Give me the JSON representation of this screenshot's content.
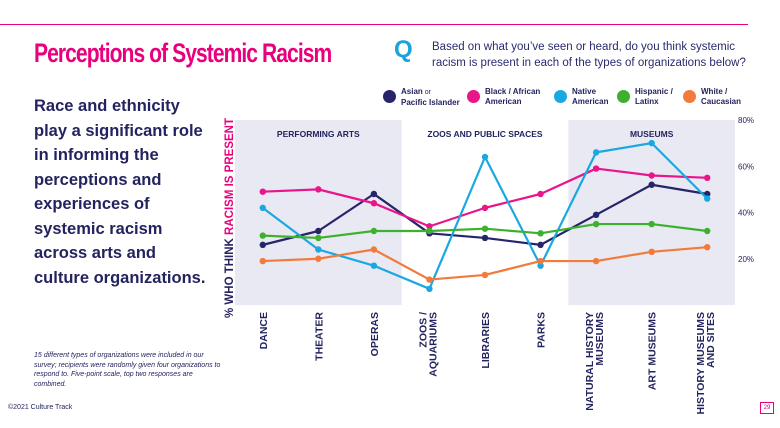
{
  "title": "Perceptions of Systemic Racism",
  "q_mark": "Q",
  "question": "Based on what you’ve seen or heard, do you think systemic racism is present in each of the types of organizations below?",
  "lede": "Race and ethnicity play a significant role in informing the perceptions and experiences of systemic racism across arts and culture organizations.",
  "footnote": "15 different types of organizations were included in our survey; recipients were randomly given four organizations to respond to. Five-point scale, top two responses are combined.",
  "copyright": "©2021 Culture Track",
  "page_number": "29",
  "colors": {
    "accent": "#e8007d",
    "q": "#1aa3dd",
    "band": "#e9e9f3",
    "text": "#23235f"
  },
  "chart_data": {
    "type": "line",
    "ylabel_prefix": "% WHO THINK ",
    "ylabel_highlight": "RACISM IS PRESENT",
    "ylim": [
      0,
      80
    ],
    "yticks": [
      "80%",
      "60%",
      "40%",
      "20%"
    ],
    "ytick_values": [
      80,
      60,
      40,
      20
    ],
    "groups": [
      {
        "label": "PERFORMING ARTS",
        "shaded": true,
        "start": 0,
        "end": 2
      },
      {
        "label": "ZOOS AND PUBLIC SPACES",
        "shaded": false,
        "start": 3,
        "end": 5
      },
      {
        "label": "MUSEUMS",
        "shaded": true,
        "start": 6,
        "end": 8
      }
    ],
    "categories": [
      "DANCE",
      "THEATER",
      "OPERAS",
      "ZOOS / AQUARIUMS",
      "LIBRARIES",
      "PARKS",
      "NATURAL HISTORY MUSEUMS",
      "ART MUSEUMS",
      "HISTORY MUSEUMS AND SITES"
    ],
    "series": [
      {
        "name": "Asian or Pacific Islander",
        "legend_main": "Asian",
        "legend_small": " or",
        "legend_line2": "Pacific Islander",
        "color": "#26246a",
        "values": [
          26,
          32,
          48,
          31,
          29,
          26,
          39,
          52,
          48
        ]
      },
      {
        "name": "Black / African American",
        "legend_main": "Black / African",
        "legend_small": "",
        "legend_line2": "American",
        "color": "#e8158b",
        "values": [
          49,
          50,
          44,
          34,
          42,
          48,
          59,
          56,
          55
        ]
      },
      {
        "name": "Native American",
        "legend_main": "Native",
        "legend_small": "",
        "legend_line2": "American",
        "color": "#1aa8e0",
        "values": [
          42,
          24,
          17,
          7,
          64,
          17,
          66,
          70,
          46
        ]
      },
      {
        "name": "Hispanic / Latinx",
        "legend_main": "Hispanic /",
        "legend_small": "",
        "legend_line2": "Latinx",
        "color": "#3db12e",
        "values": [
          30,
          29,
          32,
          32,
          33,
          31,
          35,
          35,
          32
        ]
      },
      {
        "name": "White / Caucasian",
        "legend_main": "White /",
        "legend_small": "",
        "legend_line2": "Caucasian",
        "color": "#f27a3a",
        "values": [
          19,
          20,
          24,
          11,
          13,
          19,
          19,
          23,
          25
        ]
      }
    ]
  }
}
